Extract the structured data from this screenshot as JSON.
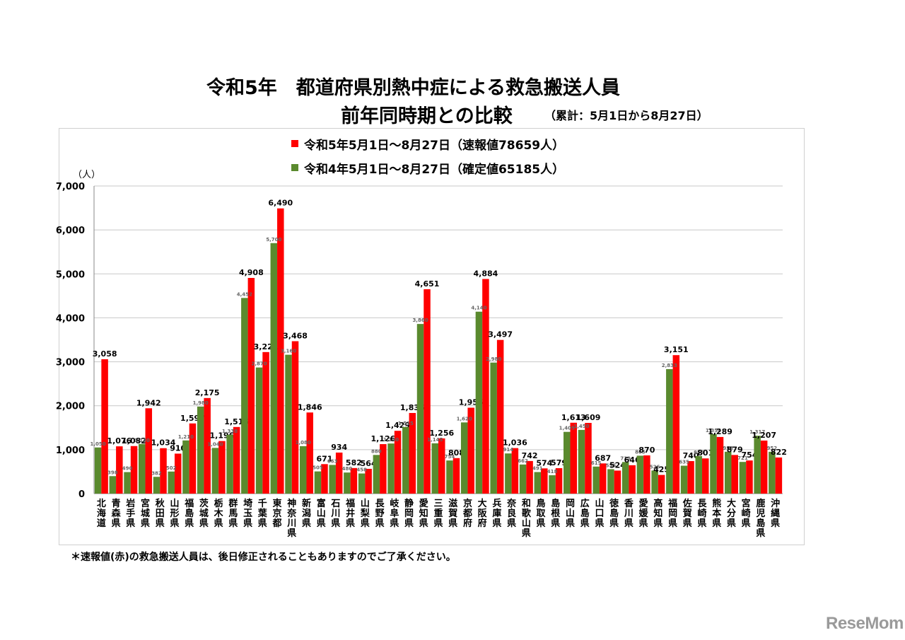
{
  "title_line1": "令和5年　都道府県別熱中症による救急搬送人員",
  "title_line2": "前年同時期との比較",
  "title_note": "（累計：5月1日から8月27日）",
  "footnote": "＊速報値(赤)の救急搬送人員は、後日修正されることもありますのでご了承ください。",
  "logo_text": "ReseMom",
  "colors": {
    "current": "#ff0000",
    "previous": "#5a8a2e",
    "grid": "#c8c8c8"
  },
  "chart_data": {
    "type": "bar",
    "unit": "（人）",
    "ylim": [
      0,
      7000
    ],
    "yticks": [
      "0",
      "1,000",
      "2,000",
      "3,000",
      "4,000",
      "5,000",
      "6,000",
      "7,000"
    ],
    "grid": true,
    "legend_position": "top",
    "categories": [
      "北海道",
      "青森県",
      "岩手県",
      "宮城県",
      "秋田県",
      "山形県",
      "福島県",
      "茨城県",
      "栃木県",
      "群馬県",
      "埼玉県",
      "千葉県",
      "東京都",
      "神奈川県",
      "新潟県",
      "富山県",
      "石川県",
      "福井県",
      "山梨県",
      "長野県",
      "岐阜県",
      "静岡県",
      "愛知県",
      "三重県",
      "滋賀県",
      "京都府",
      "大阪府",
      "兵庫県",
      "奈良県",
      "和歌山県",
      "鳥取県",
      "島根県",
      "岡山県",
      "広島県",
      "山口県",
      "徳島県",
      "香川県",
      "愛媛県",
      "高知県",
      "福岡県",
      "佐賀県",
      "長崎県",
      "熊本県",
      "大分県",
      "宮崎県",
      "鹿児島県",
      "沖縄県"
    ],
    "series": [
      {
        "name": "令和5年5月1日～8月27日（速報値78659人）",
        "values": [
          3058,
          1076,
          1082,
          1942,
          1034,
          910,
          1597,
          2175,
          1196,
          1516,
          4908,
          3221,
          6490,
          3468,
          1846,
          671,
          934,
          582,
          564,
          1126,
          1429,
          1835,
          4651,
          1256,
          808,
          1955,
          4884,
          3497,
          1036,
          742,
          574,
          579,
          1613,
          1609,
          687,
          524,
          646,
          870,
          425,
          3151,
          740,
          801,
          1289,
          879,
          754,
          1207,
          822
        ],
        "labels": [
          "3,058",
          "1,076",
          "1,082",
          "1,942",
          "1,034",
          "910",
          "1,597",
          "2,175",
          "1,196",
          "1,516",
          "4,908",
          "3,221",
          "6,490",
          "3,468",
          "1,846",
          "671",
          "934",
          "582",
          "564",
          "1,126",
          "1,429",
          "1,835",
          "4,651",
          "1,256",
          "808",
          "1,955",
          "4,884",
          "3,497",
          "1,036",
          "742",
          "574",
          "579",
          "1,613",
          "1,609",
          "687",
          "524",
          "646",
          "870",
          "425",
          "3,151",
          "740",
          "801",
          "1,289",
          "879",
          "754",
          "1,207",
          "822"
        ]
      },
      {
        "name": "令和4年5月1日～8月27日（確定値65185人）",
        "values": [
          1050,
          398,
          490,
          1130,
          382,
          502,
          1210,
          1980,
          1040,
          1338,
          4452,
          2870,
          5700,
          3160,
          1080,
          505,
          653,
          480,
          458,
          880,
          1140,
          1515,
          3860,
          1145,
          754,
          1620,
          4140,
          2980,
          914,
          662,
          491,
          418,
          1405,
          1450,
          615,
          556,
          719,
          863,
          526,
          2833,
          635,
          855,
          1354,
          953,
          721,
          1317,
          952
        ],
        "labels": [
          "1,050",
          "398",
          "490",
          "1,130",
          "382",
          "502",
          "1,210",
          "1,980",
          "1,040",
          "1,338",
          "4,452",
          "2,870",
          "5,700",
          "3,160",
          "1,080",
          "505",
          "653",
          "480",
          "458",
          "880",
          "1,140",
          "1,515",
          "3,860",
          "1,145",
          "754",
          "1,620",
          "4,140",
          "2,980",
          "914",
          "662",
          "491",
          "418",
          "1,405",
          "1,450",
          "615",
          "556",
          "719",
          "863",
          "526",
          "2,833",
          "635",
          "855",
          "1,354",
          "953",
          "721",
          "1,317",
          "952"
        ]
      }
    ]
  }
}
